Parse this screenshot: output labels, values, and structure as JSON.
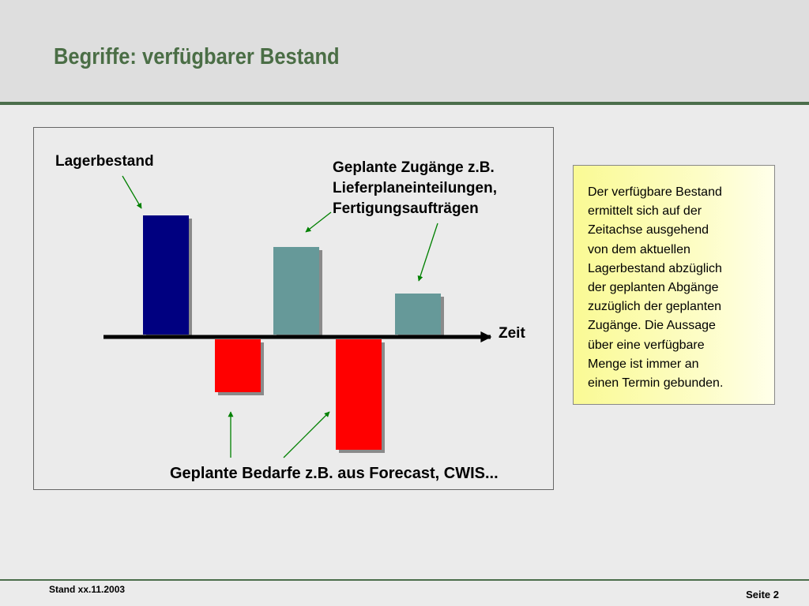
{
  "slide": {
    "title": "Begriffe: verfügbarer Bestand",
    "footer_left": "Stand xx.11.2003",
    "footer_right": "Seite 2"
  },
  "diagram": {
    "label_stock": "Lagerbestand",
    "label_inflows": [
      "Geplante Zugänge z.B.",
      "Lieferplaneinteilungen,",
      "Fertigungsaufträgen"
    ],
    "label_time_axis": "Zeit",
    "label_demands": "Geplante Bedarfe z.B. aus Forecast, CWIS...",
    "colors": {
      "stock": "#000080",
      "inflow": "#669999",
      "demand": "#ff0000",
      "arrow": "#008000",
      "axis": "#000000"
    }
  },
  "note": {
    "lines": [
      "Der verfügbare Bestand",
      "ermittelt sich  auf der",
      "Zeitachse ausgehend",
      "von dem aktuellen",
      "Lagerbestand abzüglich",
      "der  geplanten Abgänge",
      "zuzüglich der geplanten",
      "Zugänge. Die Aussage",
      "über eine verfügbare",
      "Menge ist immer an",
      "einen Termin gebunden."
    ]
  }
}
